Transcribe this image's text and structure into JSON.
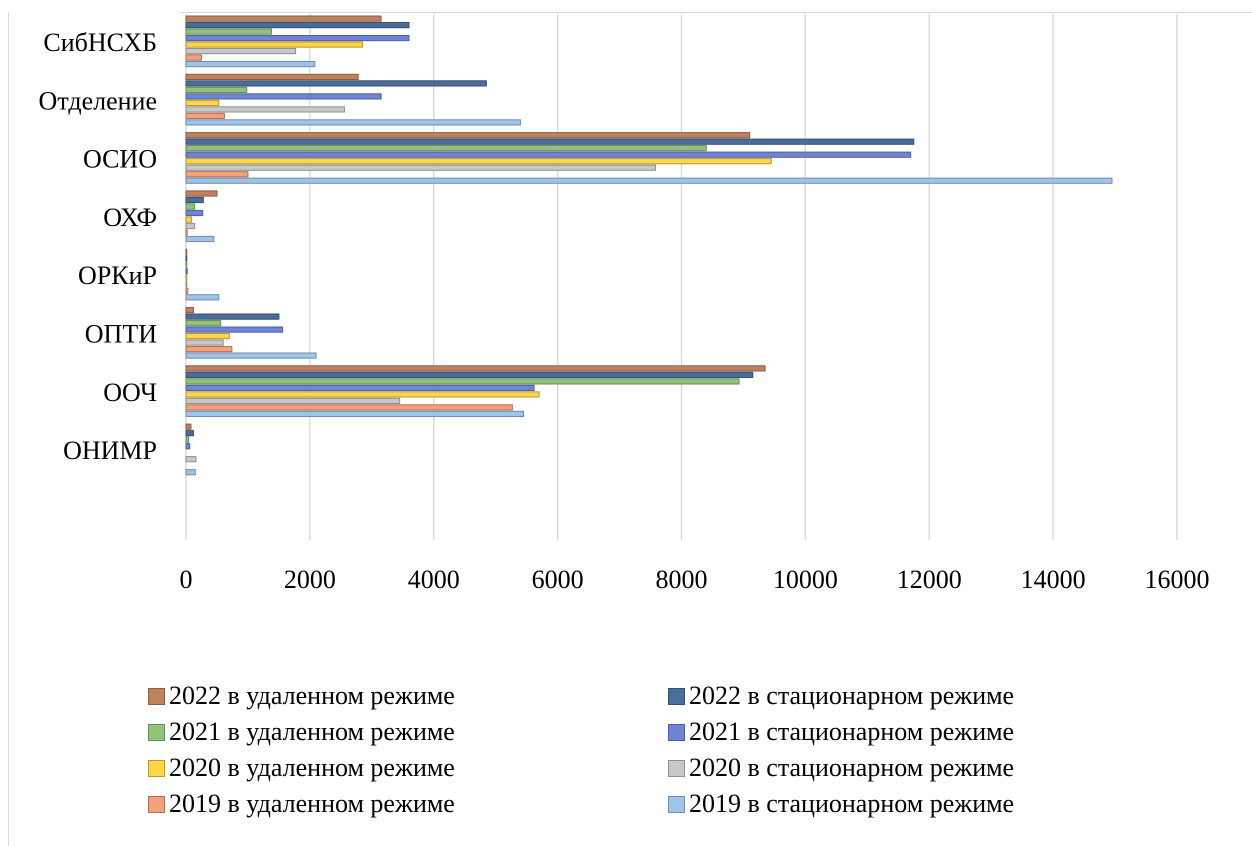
{
  "chart_data": {
    "type": "bar",
    "orientation": "horizontal",
    "categories": [
      "СибНСХБ",
      "Отделение",
      "ОСИО",
      "ОХФ",
      "ОРКиР",
      "ОПТИ",
      "ООЧ",
      "ОНИМР"
    ],
    "series": [
      {
        "name": "2022 в удаленном режиме",
        "color": "#c0815f",
        "values": [
          3150,
          2780,
          9100,
          500,
          10,
          120,
          9350,
          80
        ]
      },
      {
        "name": "2022 в стационарном режиме",
        "color": "#4a6e9a",
        "values": [
          3600,
          4850,
          11750,
          280,
          10,
          1500,
          9150,
          120
        ]
      },
      {
        "name": "2021 в удаленном режиме",
        "color": "#92c27a",
        "values": [
          1380,
          980,
          8400,
          140,
          5,
          560,
          8930,
          40
        ]
      },
      {
        "name": "2021 в стационарном режиме",
        "color": "#7084d6",
        "values": [
          3600,
          3150,
          11700,
          270,
          20,
          1560,
          5620,
          60
        ]
      },
      {
        "name": "2020 в удаленном режиме",
        "color": "#ffd54a",
        "values": [
          2850,
          530,
          9450,
          90,
          5,
          700,
          5700,
          0
        ]
      },
      {
        "name": "2020 в стационарном режиме",
        "color": "#c8c8c8",
        "values": [
          1770,
          2560,
          7580,
          140,
          5,
          600,
          3450,
          160
        ]
      },
      {
        "name": "2019 в удаленном режиме",
        "color": "#f4a07a",
        "values": [
          250,
          620,
          1000,
          20,
          30,
          740,
          5270,
          0
        ]
      },
      {
        "name": "2019 в стационарном режиме",
        "color": "#9fc4ea",
        "values": [
          2080,
          5400,
          14950,
          450,
          530,
          2100,
          5450,
          150
        ]
      }
    ],
    "xlim": [
      0,
      16000
    ],
    "xticks": [
      0,
      2000,
      4000,
      6000,
      8000,
      10000,
      12000,
      14000,
      16000
    ],
    "grid": "vertical",
    "legend_position": "bottom"
  }
}
